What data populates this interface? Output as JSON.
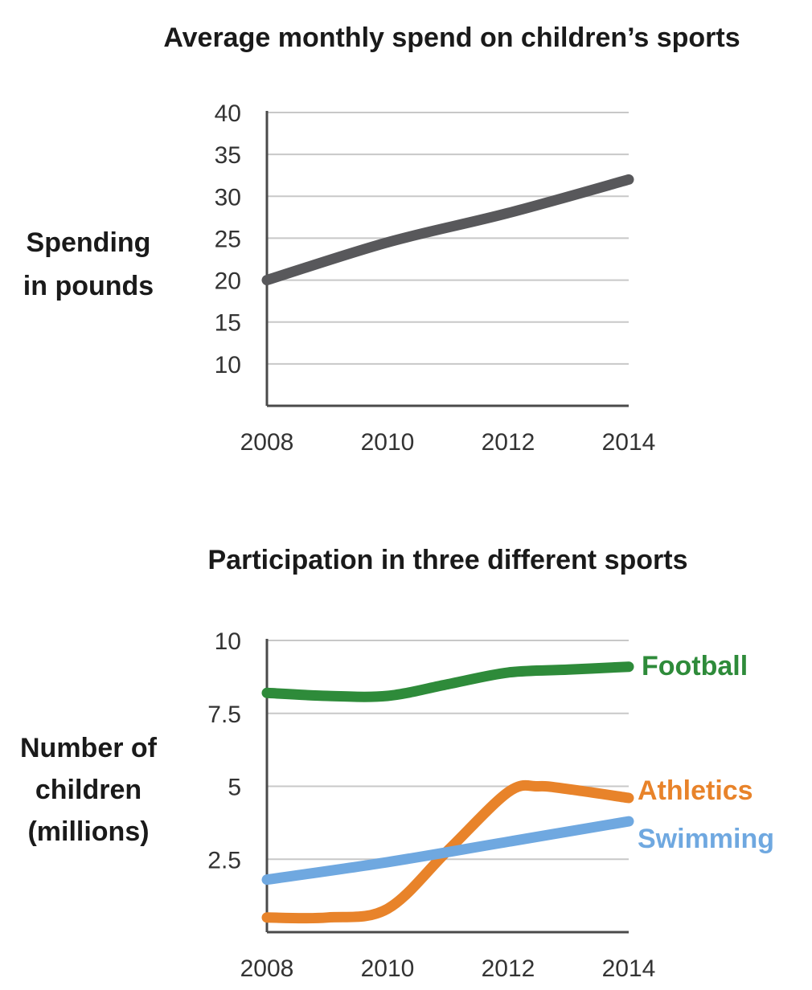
{
  "chart_data": [
    {
      "type": "line",
      "title": "Average monthly spend on children’s sports",
      "ylabel": [
        "Spending",
        "in pounds"
      ],
      "xlabel": "",
      "x": [
        2008,
        2010,
        2012,
        2014
      ],
      "x_ticks": [
        "2008",
        "2010",
        "2012",
        "2014"
      ],
      "y_ticks": [
        "10",
        "15",
        "20",
        "25",
        "30",
        "35",
        "40"
      ],
      "ylim": [
        5,
        40
      ],
      "grid": true,
      "series": [
        {
          "color": "#58585b",
          "x": [
            2008,
            2010,
            2012,
            2014
          ],
          "values": [
            20,
            24.5,
            28,
            32
          ]
        }
      ]
    },
    {
      "type": "line",
      "title": "Participation in three different sports",
      "ylabel": [
        "Number of",
        "children",
        "(millions)"
      ],
      "xlabel": "",
      "x": [
        2008,
        2010,
        2012,
        2014
      ],
      "x_ticks": [
        "2008",
        "2010",
        "2012",
        "2014"
      ],
      "y_ticks": [
        "2.5",
        "5",
        "7.5",
        "10"
      ],
      "ylim": [
        0,
        10
      ],
      "grid": true,
      "legend": "right",
      "series": [
        {
          "name": "Football",
          "color": "#2e8b3a",
          "x": [
            2008,
            2009,
            2010,
            2011,
            2012,
            2013,
            2014
          ],
          "values": [
            8.2,
            8.1,
            8.1,
            8.5,
            8.9,
            9.0,
            9.1
          ]
        },
        {
          "name": "Athletics",
          "color": "#e8832a",
          "x": [
            2008,
            2009,
            2010,
            2011,
            2012,
            2012.5,
            2013,
            2014
          ],
          "values": [
            0.5,
            0.5,
            0.8,
            2.8,
            4.8,
            5.0,
            4.9,
            4.6
          ]
        },
        {
          "name": "Swimming",
          "color": "#6fa8e0",
          "x": [
            2008,
            2010,
            2012,
            2014
          ],
          "values": [
            1.8,
            2.4,
            3.1,
            3.8
          ]
        }
      ]
    }
  ]
}
